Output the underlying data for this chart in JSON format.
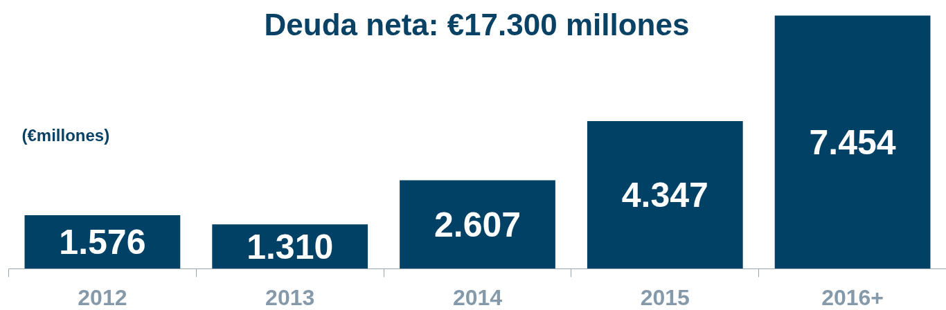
{
  "chart_data": {
    "type": "bar",
    "title": "Deuda neta: €17.300 millones",
    "annotations": [
      "(€millones)"
    ],
    "categories": [
      "2012",
      "2013",
      "2014",
      "2015",
      "2016+"
    ],
    "values": [
      1576,
      1310,
      2607,
      4347,
      7454
    ],
    "value_labels": [
      "1.576",
      "1.310",
      "2.607",
      "4.347",
      "7.454"
    ],
    "color": "#024166",
    "grid": false
  }
}
